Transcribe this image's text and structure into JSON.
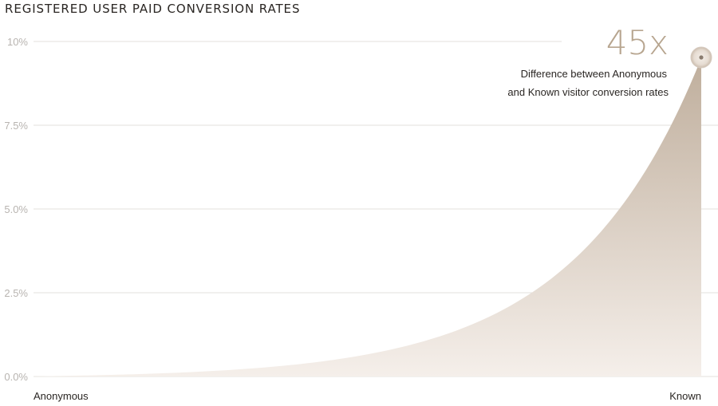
{
  "title": "REGISTERED USER PAID CONVERSION RATES",
  "chart_data": {
    "type": "area",
    "title": "REGISTERED USER PAID CONVERSION RATES",
    "categories": [
      "Anonymous",
      "Known"
    ],
    "x_labels": [
      "Anonymous",
      "Known"
    ],
    "y_ticks": [
      "0.0%",
      "2.5%",
      "5.0%",
      "7.5%",
      "10%"
    ],
    "y_tick_values": [
      0,
      2.5,
      5,
      7.5,
      10
    ],
    "ylim": [
      0,
      10
    ],
    "values": [
      0.21,
      9.5
    ],
    "grid": true,
    "fill_color_top": "#bfae9c",
    "fill_color_bottom": "#f5efea",
    "annotation": {
      "value": "45x",
      "text_line1": "Difference between Anonymous",
      "text_line2": "and Known visitor conversion rates"
    }
  }
}
